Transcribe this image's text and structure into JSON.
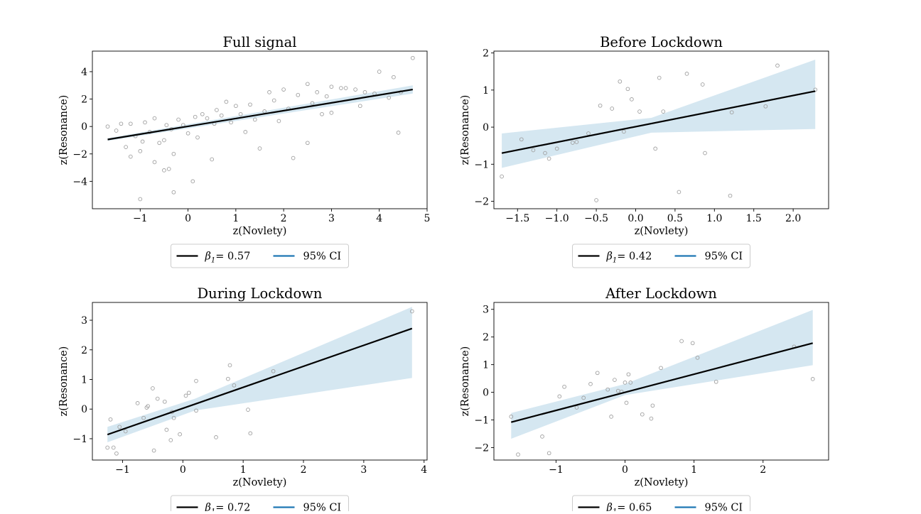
{
  "colors": {
    "points": "#a0a0a0",
    "fit_line": "#000000",
    "ci_band": "#d5e7f1",
    "ci_legend": "#1f77b4",
    "axes": "#000000"
  },
  "chart_data": [
    {
      "type": "scatter",
      "title": "Full signal",
      "xlabel": "z(Novlety)",
      "ylabel": "z(Resonance)",
      "xlim": [
        -2.0,
        5.0
      ],
      "ylim": [
        -6.0,
        5.5
      ],
      "xticks": [
        -1,
        0,
        1,
        2,
        3,
        4,
        5
      ],
      "xtick_labels": [
        "−1",
        "0",
        "1",
        "2",
        "3",
        "4",
        "5"
      ],
      "yticks": [
        -4,
        -2,
        0,
        2,
        4
      ],
      "ytick_labels": [
        "−4",
        "−2",
        "0",
        "2",
        "4"
      ],
      "fit": {
        "x": [
          -1.68,
          4.7
        ],
        "y": [
          -0.95,
          2.7
        ]
      },
      "ci": {
        "x": [
          -1.68,
          4.7
        ],
        "lower": [
          -1.05,
          2.4
        ],
        "upper": [
          -0.85,
          3.0
        ]
      },
      "points": {
        "x": [
          -1.68,
          -1.2,
          -0.4,
          -0.3,
          0.1,
          -1.0,
          0.5,
          4.7,
          4.3,
          4.4,
          3.0,
          4.0,
          2.5,
          3.5,
          4.2,
          3.2,
          2.9,
          -0.7,
          -0.5,
          -1.3,
          1.5,
          2.2,
          2.5,
          3.7,
          3.0,
          1.7,
          2.0,
          0.8,
          -1.5,
          -1.1,
          -0.9,
          -0.6,
          -0.2,
          0.3,
          0.6,
          1.0,
          1.3,
          1.8,
          2.3,
          2.7,
          3.3,
          3.9,
          -1.4,
          -0.8,
          -0.1,
          0.4,
          1.1,
          1.6,
          2.1,
          2.6,
          -1.0,
          -0.3,
          0.2,
          0.9,
          1.4,
          -0.5,
          0.0,
          0.7,
          -1.2,
          -0.7,
          1.9,
          2.8,
          3.6,
          4.45,
          -0.35,
          0.15,
          -0.95,
          -0.45,
          1.2,
          0.55
        ],
        "y": [
          0.0,
          0.2,
          -3.1,
          -4.8,
          -4.0,
          -5.3,
          -2.4,
          5.0,
          3.6,
          -0.45,
          2.9,
          4.0,
          3.1,
          2.7,
          2.1,
          2.8,
          2.2,
          0.6,
          -3.2,
          -1.5,
          -1.6,
          -2.3,
          -1.2,
          2.5,
          1.0,
          2.5,
          2.7,
          1.8,
          -0.3,
          -0.7,
          0.3,
          -1.2,
          0.5,
          0.9,
          1.2,
          1.5,
          1.6,
          1.9,
          2.3,
          2.5,
          2.8,
          2.4,
          0.2,
          -0.4,
          0.1,
          0.6,
          0.9,
          1.1,
          1.3,
          1.7,
          -1.8,
          -2.0,
          -0.8,
          0.3,
          0.5,
          -1.0,
          -0.5,
          0.8,
          -2.2,
          -2.6,
          0.4,
          0.9,
          1.5,
          2.5,
          -0.2,
          0.7,
          -1.1,
          0.1,
          -0.4,
          0.2
        ]
      },
      "legend": {
        "fit_label_prefix": "β",
        "fit_label_sub": "1",
        "fit_label_suffix": "= 0.57",
        "ci_label": "95% CI"
      }
    },
    {
      "type": "scatter",
      "title": "Before Lockdown",
      "xlabel": "z(Novlety)",
      "ylabel": "z(Resonance)",
      "xlim": [
        -1.8,
        2.45
      ],
      "ylim": [
        -2.2,
        2.05
      ],
      "xticks": [
        -1.5,
        -1.0,
        -0.5,
        0.0,
        0.5,
        1.0,
        1.5,
        2.0
      ],
      "xtick_labels": [
        "−1.5",
        "−1.0",
        "−0.5",
        "0.0",
        "0.5",
        "1.0",
        "1.5",
        "2.0"
      ],
      "yticks": [
        -2,
        -1,
        0,
        1,
        2
      ],
      "ytick_labels": [
        "−2",
        "−1",
        "0",
        "1",
        "2"
      ],
      "fit": {
        "x": [
          -1.7,
          2.28
        ],
        "y": [
          -0.7,
          0.97
        ]
      },
      "ci": {
        "x": [
          -1.7,
          0.2,
          2.28
        ],
        "lower": [
          -1.1,
          -0.15,
          -0.05
        ],
        "upper": [
          -0.17,
          0.25,
          1.82
        ]
      },
      "points": {
        "x": [
          -1.7,
          -1.45,
          -1.3,
          -1.15,
          -1.1,
          -1.0,
          -0.8,
          -0.6,
          -0.5,
          -0.45,
          -0.3,
          -0.2,
          -0.15,
          -0.1,
          -0.05,
          0.05,
          0.25,
          0.3,
          0.35,
          0.55,
          0.65,
          0.85,
          0.88,
          1.2,
          1.22,
          1.65,
          1.8,
          2.28,
          -0.75
        ],
        "y": [
          -1.33,
          -0.33,
          -0.62,
          -0.7,
          -0.85,
          -0.58,
          -0.42,
          -0.17,
          -1.97,
          0.58,
          0.5,
          1.23,
          -0.12,
          1.03,
          0.75,
          0.42,
          -0.58,
          1.33,
          0.42,
          -1.75,
          1.44,
          1.15,
          -0.7,
          -1.85,
          0.4,
          0.56,
          1.66,
          1.01,
          -0.4
        ]
      },
      "legend": {
        "fit_label_prefix": "β",
        "fit_label_sub": "1",
        "fit_label_suffix": "= 0.42",
        "ci_label": "95% CI"
      }
    },
    {
      "type": "scatter",
      "title": "During Lockdown",
      "xlabel": "z(Novlety)",
      "ylabel": "z(Resonance)",
      "xlim": [
        -1.5,
        4.05
      ],
      "ylim": [
        -1.72,
        3.6
      ],
      "xticks": [
        -1,
        0,
        1,
        2,
        3,
        4
      ],
      "xtick_labels": [
        "−1",
        "0",
        "1",
        "2",
        "3",
        "4"
      ],
      "yticks": [
        -1,
        0,
        1,
        2,
        3
      ],
      "ytick_labels": [
        "−1",
        "0",
        "1",
        "2",
        "3"
      ],
      "fit": {
        "x": [
          -1.25,
          3.8
        ],
        "y": [
          -0.86,
          2.72
        ]
      },
      "ci": {
        "x": [
          -1.25,
          0.2,
          3.8
        ],
        "lower": [
          -1.12,
          -0.05,
          1.05
        ],
        "upper": [
          -0.6,
          0.35,
          3.45
        ]
      },
      "points": {
        "x": [
          -1.25,
          -1.2,
          -1.15,
          -1.1,
          -1.05,
          -0.95,
          -0.75,
          -0.65,
          -0.6,
          -0.58,
          -0.5,
          -0.48,
          -0.42,
          -0.3,
          -0.27,
          -0.2,
          -0.18,
          -0.15,
          -0.05,
          0.05,
          0.1,
          0.22,
          0.22,
          0.55,
          0.75,
          0.78,
          0.85,
          1.08,
          1.12,
          1.5,
          3.8
        ],
        "y": [
          -1.3,
          -0.35,
          -1.3,
          -1.5,
          -0.6,
          -0.75,
          0.2,
          -0.3,
          0.05,
          0.1,
          0.7,
          -1.4,
          0.35,
          0.25,
          -0.7,
          -1.05,
          -0.1,
          -0.3,
          -0.85,
          0.45,
          0.55,
          -0.05,
          0.95,
          -0.95,
          1.02,
          1.48,
          0.8,
          -0.02,
          -0.82,
          1.28,
          3.3
        ]
      },
      "legend": {
        "fit_label_prefix": "β",
        "fit_label_sub": "1",
        "fit_label_suffix": "= 0.72",
        "ci_label": "95% CI"
      }
    },
    {
      "type": "scatter",
      "title": "After Lockdown",
      "xlabel": "z(Novlety)",
      "ylabel": "z(Resonance)",
      "xlim": [
        -1.9,
        2.95
      ],
      "ylim": [
        -2.45,
        3.25
      ],
      "xticks": [
        -1,
        0,
        1,
        2
      ],
      "xtick_labels": [
        "−1",
        "0",
        "1",
        "2"
      ],
      "yticks": [
        -2,
        -1,
        0,
        1,
        2,
        3
      ],
      "ytick_labels": [
        "−2",
        "−1",
        "0",
        "1",
        "2",
        "3"
      ],
      "fit": {
        "x": [
          -1.65,
          2.72
        ],
        "y": [
          -1.08,
          1.78
        ]
      },
      "ci": {
        "x": [
          -1.65,
          0.0,
          2.72
        ],
        "lower": [
          -1.68,
          -0.1,
          0.98
        ],
        "upper": [
          -0.75,
          0.3,
          2.98
        ]
      },
      "points": {
        "x": [
          -1.65,
          -1.55,
          -1.2,
          -1.1,
          -0.95,
          -0.88,
          -0.7,
          -0.6,
          -0.5,
          -0.4,
          -0.25,
          -0.2,
          -0.15,
          -0.1,
          0.0,
          0.02,
          0.05,
          0.08,
          0.25,
          0.38,
          0.4,
          0.52,
          0.82,
          0.98,
          1.05,
          1.32,
          2.45,
          2.72,
          -0.05
        ],
        "y": [
          -0.88,
          -2.25,
          -1.6,
          -2.2,
          -0.15,
          0.2,
          -0.55,
          -0.2,
          0.3,
          0.7,
          0.1,
          -0.88,
          0.45,
          0.05,
          0.35,
          -0.38,
          0.65,
          0.35,
          -0.8,
          -0.95,
          -0.48,
          0.88,
          1.85,
          1.78,
          1.25,
          0.38,
          1.65,
          0.48,
          0.02
        ]
      },
      "legend": {
        "fit_label_prefix": "β",
        "fit_label_sub": "1",
        "fit_label_suffix": "= 0.65",
        "ci_label": "95% CI"
      }
    }
  ]
}
